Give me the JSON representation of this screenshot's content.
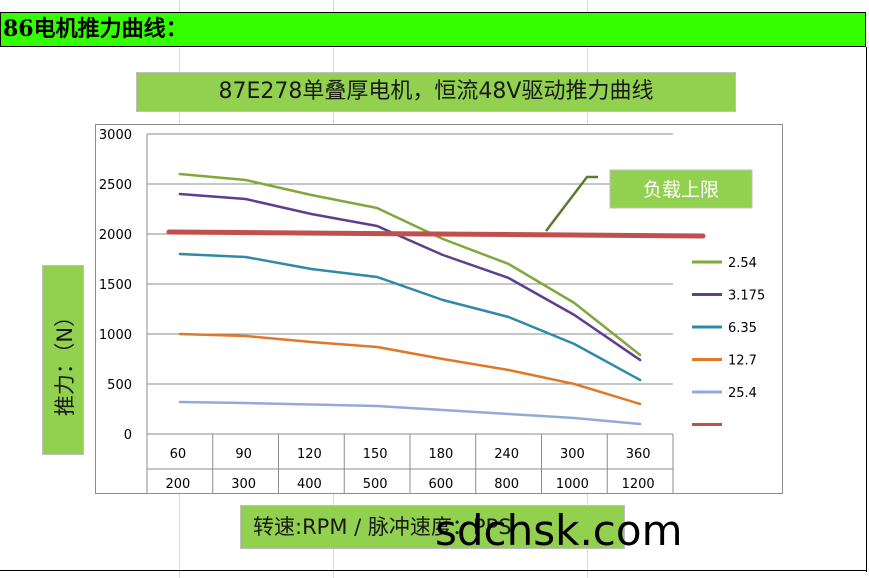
{
  "header": {
    "title": "86电机推力曲线："
  },
  "chart_title": "87E278单叠厚电机，恒流48V驱动推力曲线",
  "y_axis_label": "推力：（N）",
  "x_axis_label": "转速:RPM / 脉冲速度：PPS",
  "watermark": "sdchsk.com",
  "annotation": {
    "label": "负载上限",
    "color": "#92d050"
  },
  "colors": {
    "green_box": "#92d050",
    "header_green": "#33ff00"
  },
  "chart_data": {
    "type": "line",
    "categories_rpm": [
      "60",
      "90",
      "120",
      "150",
      "180",
      "240",
      "300",
      "360"
    ],
    "categories_pps": [
      "200",
      "300",
      "400",
      "500",
      "600",
      "800",
      "1000",
      "1200"
    ],
    "ylim": [
      0,
      3000
    ],
    "yticks": [
      "0",
      "500",
      "1000",
      "1500",
      "2000",
      "2500",
      "3000"
    ],
    "grid": "horizontal",
    "legend_position": "right",
    "series": [
      {
        "name": "2.54",
        "color": "#7fa83d",
        "values": [
          2600,
          2540,
          2390,
          2260,
          1950,
          1700,
          1310,
          790
        ]
      },
      {
        "name": "3.175",
        "color": "#5f3e8c",
        "values": [
          2400,
          2350,
          2200,
          2080,
          1790,
          1560,
          1190,
          740
        ]
      },
      {
        "name": "6.35",
        "color": "#2e8aa8",
        "values": [
          1800,
          1770,
          1650,
          1570,
          1340,
          1170,
          900,
          540
        ]
      },
      {
        "name": "12.7",
        "color": "#e0782a",
        "values": [
          1000,
          980,
          920,
          870,
          750,
          640,
          500,
          300
        ]
      },
      {
        "name": "25.4",
        "color": "#95a9d8",
        "values": [
          320,
          310,
          295,
          280,
          240,
          200,
          160,
          100
        ]
      },
      {
        "name": "",
        "color": "#c0504d",
        "values": [
          2020,
          2015,
          2010,
          2005,
          2000,
          1995,
          1990,
          1980
        ]
      }
    ]
  }
}
